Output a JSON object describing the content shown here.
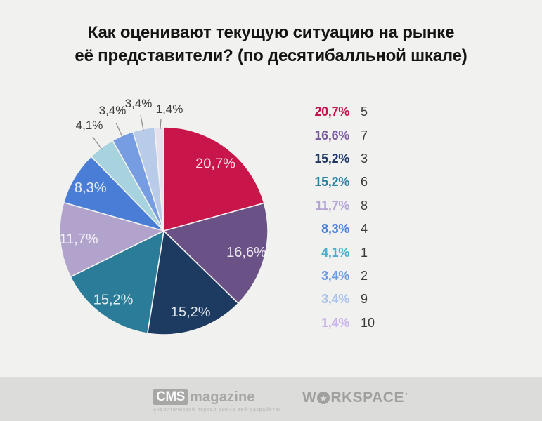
{
  "title": {
    "line1": "Как оценивают текущую ситуацию на рынке",
    "line2": "её представители? (по десятибалльной шкале)"
  },
  "chart_data": {
    "type": "pie",
    "title": "Как оценивают текущую ситуацию на рынке её представители? (по десятибалльной шкале)",
    "unit": "%",
    "scale": "десятибалльная шкала (1–10)",
    "start_angle_deg": 0,
    "direction": "clockwise",
    "decimal_separator": ",",
    "legend_position": "right",
    "slices": [
      {
        "score": "5",
        "value": 20.7,
        "label": "20,7%",
        "color": "#c9164a",
        "legend_color": "#c2154e",
        "label_placement": "inside"
      },
      {
        "score": "7",
        "value": 16.6,
        "label": "16,6%",
        "color": "#6b5286",
        "legend_color": "#7a5ba1",
        "label_placement": "inside"
      },
      {
        "score": "3",
        "value": 15.2,
        "label": "15,2%",
        "color": "#1d3a61",
        "legend_color": "#203a68",
        "label_placement": "inside"
      },
      {
        "score": "6",
        "value": 15.2,
        "label": "15,2%",
        "color": "#2b7c98",
        "legend_color": "#2e809f",
        "label_placement": "inside"
      },
      {
        "score": "8",
        "value": 11.7,
        "label": "11,7%",
        "color": "#b2a3cd",
        "legend_color": "#b4a5d5",
        "label_placement": "inside"
      },
      {
        "score": "4",
        "value": 8.3,
        "label": "8,3%",
        "color": "#4a7ed6",
        "legend_color": "#4b80da",
        "label_placement": "inside"
      },
      {
        "score": "1",
        "value": 4.1,
        "label": "4,1%",
        "color": "#a6d3dd",
        "legend_color": "#4fadcc",
        "label_placement": "callout"
      },
      {
        "score": "2",
        "value": 3.4,
        "label": "3,4%",
        "color": "#769de1",
        "legend_color": "#6d9ae6",
        "label_placement": "callout"
      },
      {
        "score": "9",
        "value": 3.4,
        "label": "3,4%",
        "color": "#b8cbe9",
        "legend_color": "#a9c3eb",
        "label_placement": "callout"
      },
      {
        "score": "10",
        "value": 1.4,
        "label": "1,4%",
        "color": "#e6e1ed",
        "legend_color": "#c9b3e9",
        "label_placement": "callout"
      }
    ]
  },
  "footer": {
    "cms": {
      "badge": "CMS",
      "word": "magazine",
      "tagline": "аналитический портал рынка веб-разработок"
    },
    "workspace": {
      "prefix": "W",
      "star_icon": "star-in-circle",
      "star_glyph": "★",
      "suffix": "RKSPACE",
      "mark": "’"
    }
  },
  "colors": {
    "page_background": "#f1f1ef",
    "footer_background": "#dcdcda",
    "title_text": "#141414",
    "legend_number_text": "#3a3a3a",
    "callout_text": "#3c3c3c"
  }
}
